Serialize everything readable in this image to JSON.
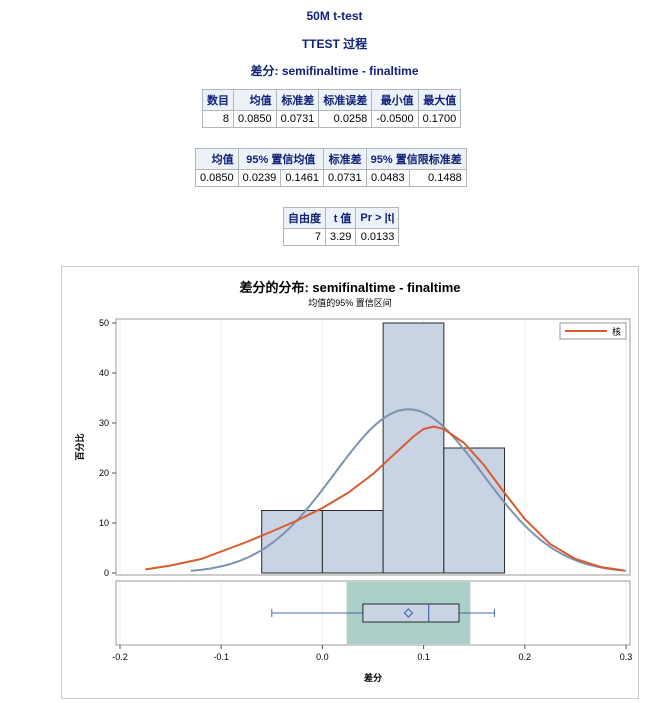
{
  "header": {
    "title1": "50M t-test",
    "title2": "TTEST 过程",
    "title3": "差分: semifinaltime - finaltime"
  },
  "stats_table": {
    "headers": [
      "数目",
      "均值",
      "标准差",
      "标准误差",
      "最小值",
      "最大值"
    ],
    "rows": [
      [
        "8",
        "0.0850",
        "0.0731",
        "0.0258",
        "-0.0500",
        "0.1700"
      ]
    ]
  },
  "ci_table": {
    "headers": [
      "均值",
      "95% 置信均值",
      "标准差",
      "95% 置信限标准差"
    ],
    "rows": [
      [
        "0.0850",
        "0.0239",
        "0.1461",
        "0.0731",
        "0.0483",
        "0.1488"
      ]
    ]
  },
  "test_table": {
    "headers": [
      "自由度",
      "t 值",
      "Pr > |t|"
    ],
    "rows": [
      [
        "7",
        "3.29",
        "0.0133"
      ]
    ]
  },
  "chart_data": {
    "type": "bar",
    "title": "差分的分布: semifinaltime - finaltime",
    "subtitle": "均值的95% 置信区间",
    "xlabel": "差分",
    "ylabel": "百分比",
    "xlim": [
      -0.2,
      0.3
    ],
    "ylim": [
      0,
      50
    ],
    "xticks": [
      -0.2,
      -0.1,
      0.0,
      0.1,
      0.2,
      0.3
    ],
    "xtick_labels": [
      "-0.2",
      "-0.1",
      "0.0",
      "0.1",
      "0.2",
      "0.3"
    ],
    "yticks": [
      0,
      10,
      20,
      30,
      40,
      50
    ],
    "grid": true,
    "histogram": {
      "bins": [
        [
          -0.06,
          0.0
        ],
        [
          0.0,
          0.06
        ],
        [
          0.06,
          0.12
        ],
        [
          0.12,
          0.18
        ]
      ],
      "values": [
        12.5,
        12.5,
        50,
        25
      ],
      "fill": "#c8d3e3",
      "edge": "#2a2a2a"
    },
    "legend": {
      "position": "top-right",
      "entries": [
        {
          "label": "核",
          "color": "#d95b2e"
        }
      ]
    },
    "normal_curve": {
      "mean": 0.085,
      "sd": 0.0731,
      "color": "#7b92b0",
      "x_range": [
        -0.13,
        0.3
      ]
    },
    "kernel_curve": {
      "color": "#d95b2e",
      "points": [
        [
          -0.175,
          0.7
        ],
        [
          -0.15,
          1.5
        ],
        [
          -0.12,
          2.8
        ],
        [
          -0.1,
          4.3
        ],
        [
          -0.075,
          6.2
        ],
        [
          -0.05,
          8.3
        ],
        [
          -0.025,
          10.5
        ],
        [
          0.0,
          13.0
        ],
        [
          0.025,
          16.0
        ],
        [
          0.05,
          19.8
        ],
        [
          0.075,
          24.5
        ],
        [
          0.09,
          27.3
        ],
        [
          0.1,
          28.8
        ],
        [
          0.11,
          29.3
        ],
        [
          0.12,
          28.8
        ],
        [
          0.14,
          26.0
        ],
        [
          0.16,
          21.5
        ],
        [
          0.18,
          16.0
        ],
        [
          0.2,
          10.8
        ],
        [
          0.225,
          5.8
        ],
        [
          0.25,
          2.8
        ],
        [
          0.275,
          1.2
        ],
        [
          0.298,
          0.5
        ]
      ]
    },
    "boxplot": {
      "min": -0.05,
      "q1": 0.04,
      "median": 0.105,
      "q3": 0.135,
      "max": 0.17,
      "mean": 0.085,
      "ci_mean": [
        0.0239,
        0.1461
      ],
      "ci_color": "#a9cfc8"
    }
  }
}
